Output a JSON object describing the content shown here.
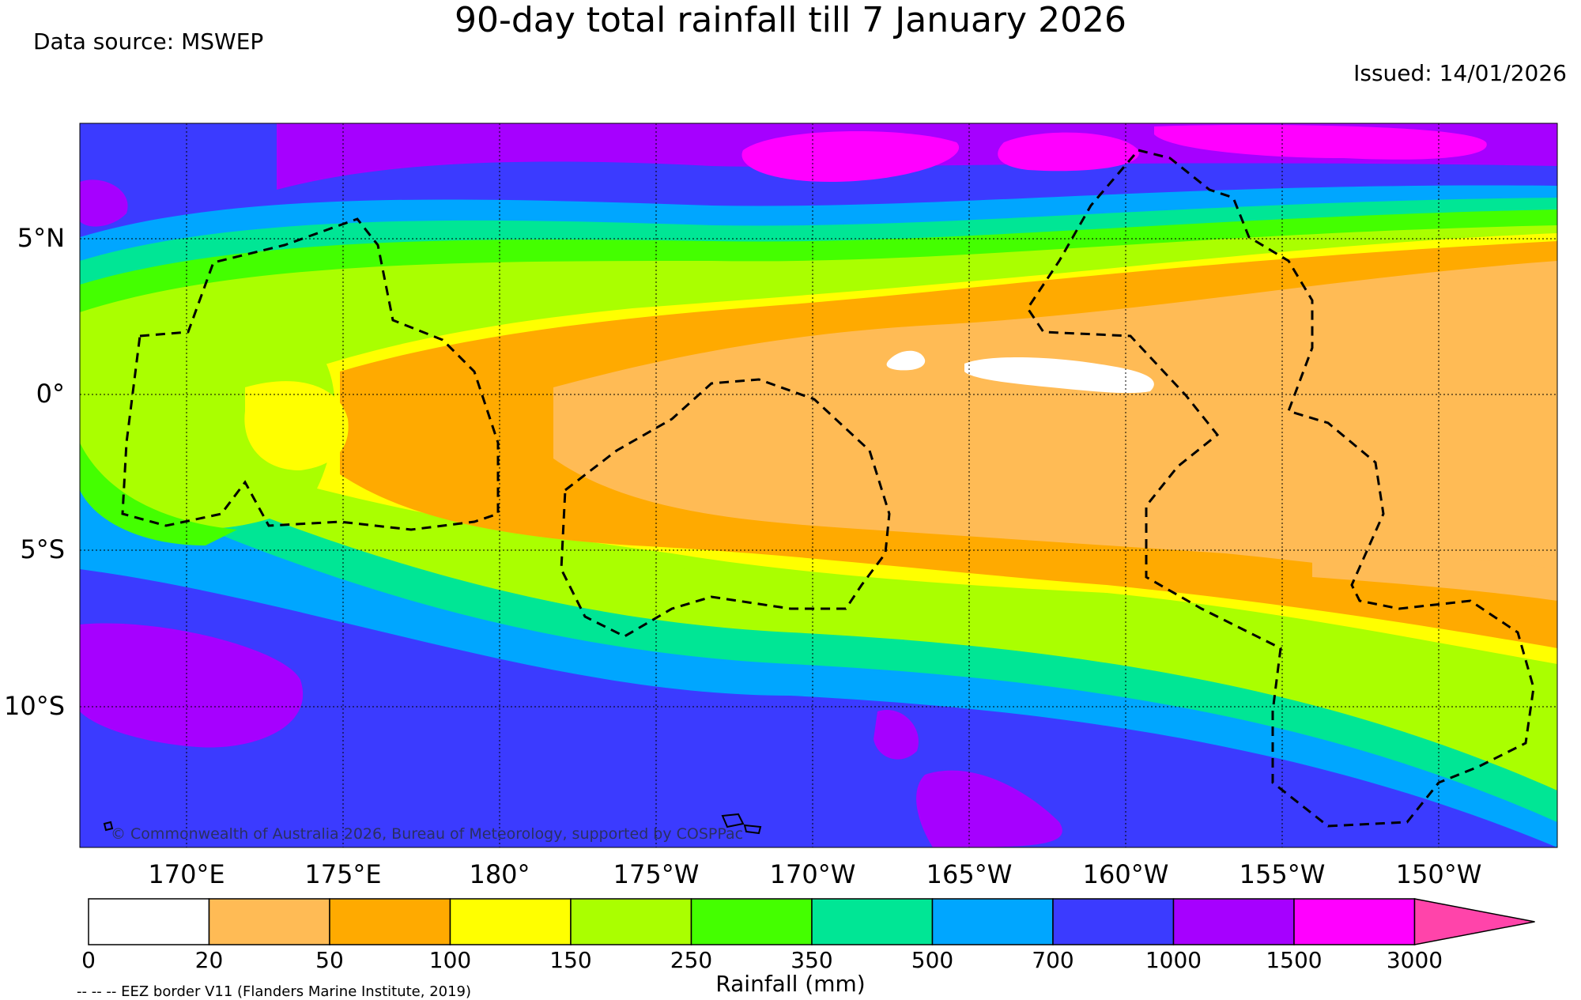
{
  "title": "90-day total rainfall till 7 January 2026",
  "data_source": "Data source: MSWEP",
  "issued": "Issued: 14/01/2026",
  "copyright": "© Commonwealth of Australia 2026, Bureau of Meteorology, supported by COSPPac",
  "eez_note": "-- -- -- EEZ border V11 (Flanders Marine Institute, 2019)",
  "lat_labels": [
    "5°N",
    "0°",
    "5°S",
    "10°S"
  ],
  "lon_labels": [
    "170°E",
    "175°E",
    "180°",
    "175°W",
    "170°W",
    "165°W",
    "160°W",
    "155°W",
    "150°W"
  ],
  "colorbar": {
    "title": "Rainfall (mm)",
    "ticks": [
      "0",
      "20",
      "50",
      "100",
      "150",
      "250",
      "350",
      "500",
      "700",
      "1000",
      "1500",
      "3000"
    ],
    "colors": [
      "#ffffff",
      "#ffbb55",
      "#ffaa00",
      "#ffff00",
      "#aaff00",
      "#44ff00",
      "#00e695",
      "#00a6ff",
      "#3b3bff",
      "#a600ff",
      "#ff00ff",
      "#ff44aa"
    ]
  }
}
